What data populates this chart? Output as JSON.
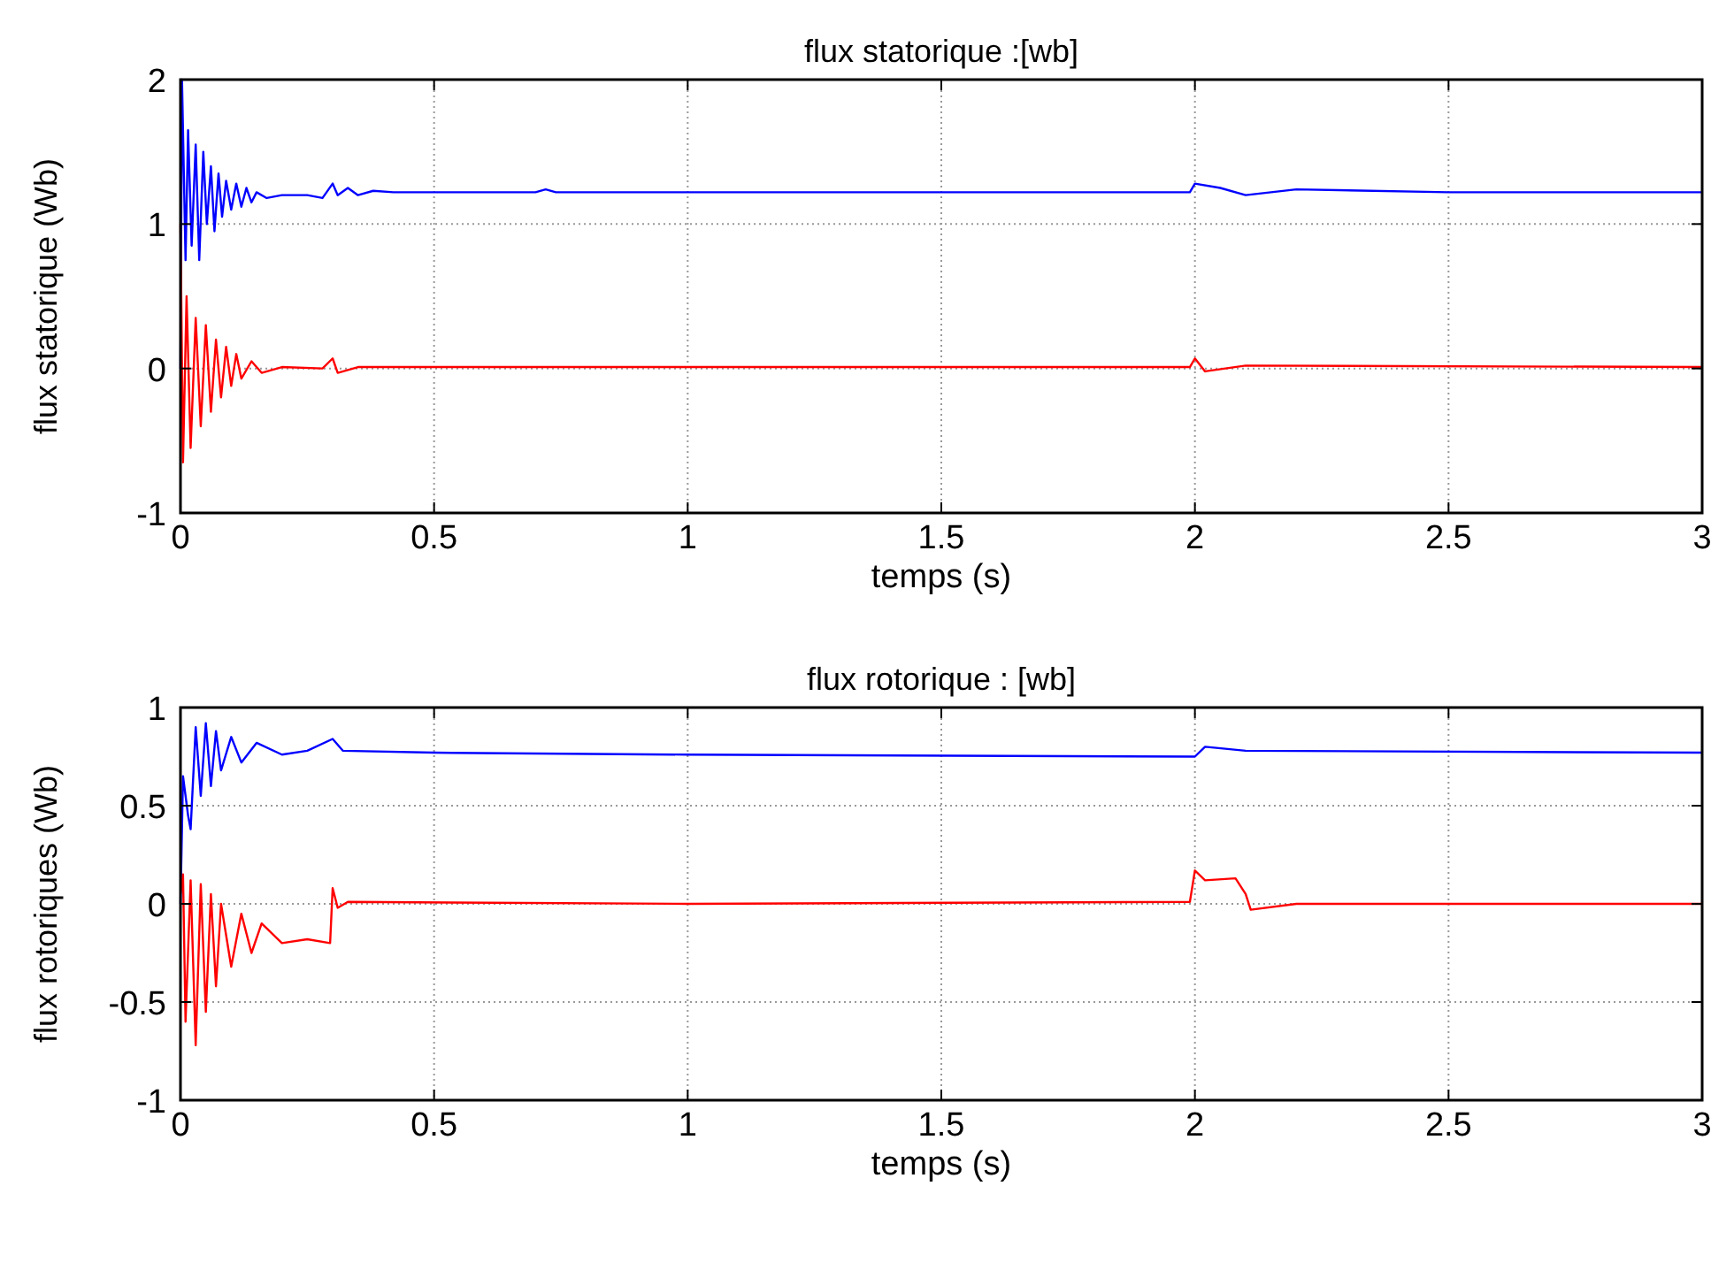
{
  "chart_data": [
    {
      "type": "line",
      "title": "flux statorique :[wb]",
      "xlabel": "temps (s)",
      "ylabel": "flux statorique (Wb)",
      "xlim": [
        0,
        3
      ],
      "xticks": [
        0,
        0.5,
        1,
        1.5,
        2,
        2.5,
        3
      ],
      "ylim": [
        -1,
        2
      ],
      "yticks": [
        -1,
        0,
        1,
        2
      ],
      "grid": true,
      "series": [
        {
          "color": "#0000ff",
          "x": [
            0,
            0.003,
            0.01,
            0.015,
            0.022,
            0.03,
            0.037,
            0.045,
            0.052,
            0.06,
            0.067,
            0.075,
            0.082,
            0.09,
            0.1,
            0.11,
            0.12,
            0.13,
            0.14,
            0.15,
            0.17,
            0.2,
            0.25,
            0.28,
            0.3,
            0.31,
            0.33,
            0.35,
            0.38,
            0.42,
            0.7,
            0.72,
            0.74,
            1.0,
            1.99,
            2.0,
            2.05,
            2.1,
            2.2,
            2.5,
            3.0
          ],
          "values": [
            0,
            2.0,
            0.75,
            1.65,
            0.85,
            1.55,
            0.75,
            1.5,
            1.0,
            1.4,
            0.95,
            1.35,
            1.05,
            1.3,
            1.1,
            1.28,
            1.12,
            1.25,
            1.15,
            1.22,
            1.18,
            1.2,
            1.2,
            1.18,
            1.28,
            1.2,
            1.25,
            1.2,
            1.23,
            1.22,
            1.22,
            1.24,
            1.22,
            1.22,
            1.22,
            1.28,
            1.25,
            1.2,
            1.24,
            1.22,
            1.22
          ]
        },
        {
          "color": "#ff0000",
          "x": [
            0,
            0.005,
            0.012,
            0.02,
            0.03,
            0.04,
            0.05,
            0.06,
            0.07,
            0.08,
            0.09,
            0.1,
            0.11,
            0.12,
            0.14,
            0.16,
            0.2,
            0.28,
            0.3,
            0.31,
            0.35,
            1.0,
            1.99,
            2.0,
            2.02,
            2.1,
            3.0
          ],
          "values": [
            1.0,
            -0.65,
            0.5,
            -0.55,
            0.35,
            -0.4,
            0.3,
            -0.3,
            0.2,
            -0.2,
            0.15,
            -0.12,
            0.1,
            -0.07,
            0.05,
            -0.03,
            0.01,
            0,
            0.07,
            -0.03,
            0.01,
            0.01,
            0.01,
            0.07,
            -0.02,
            0.02,
            0.01
          ]
        }
      ]
    },
    {
      "type": "line",
      "title": "flux rotorique : [wb]",
      "xlabel": "temps (s)",
      "ylabel": "flux rotoriques (Wb)",
      "xlim": [
        0,
        3
      ],
      "xticks": [
        0,
        0.5,
        1,
        1.5,
        2,
        2.5,
        3
      ],
      "ylim": [
        -1,
        1
      ],
      "yticks": [
        -1,
        -0.5,
        0,
        0.5,
        1
      ],
      "grid": true,
      "series": [
        {
          "color": "#0000ff",
          "x": [
            0,
            0.005,
            0.015,
            0.02,
            0.03,
            0.04,
            0.05,
            0.06,
            0.07,
            0.08,
            0.1,
            0.12,
            0.15,
            0.2,
            0.25,
            0.3,
            0.32,
            0.5,
            1.0,
            2.0,
            2.02,
            2.1,
            3.0
          ],
          "values": [
            0,
            0.65,
            0.45,
            0.38,
            0.9,
            0.55,
            0.92,
            0.6,
            0.88,
            0.68,
            0.85,
            0.72,
            0.82,
            0.76,
            0.78,
            0.84,
            0.78,
            0.77,
            0.76,
            0.75,
            0.8,
            0.78,
            0.77
          ]
        },
        {
          "color": "#ff0000",
          "x": [
            0,
            0.005,
            0.01,
            0.02,
            0.03,
            0.04,
            0.05,
            0.06,
            0.07,
            0.08,
            0.1,
            0.12,
            0.14,
            0.16,
            0.2,
            0.25,
            0.295,
            0.3,
            0.31,
            0.33,
            1.0,
            1.99,
            2.0,
            2.02,
            2.08,
            2.1,
            2.11,
            2.2,
            3.0
          ],
          "values": [
            0.05,
            0.15,
            -0.6,
            0.12,
            -0.72,
            0.1,
            -0.55,
            0.05,
            -0.42,
            0,
            -0.32,
            -0.05,
            -0.25,
            -0.1,
            -0.2,
            -0.18,
            -0.2,
            0.08,
            -0.02,
            0.01,
            0,
            0.01,
            0.17,
            0.12,
            0.13,
            0.05,
            -0.03,
            0,
            0
          ]
        }
      ]
    }
  ]
}
